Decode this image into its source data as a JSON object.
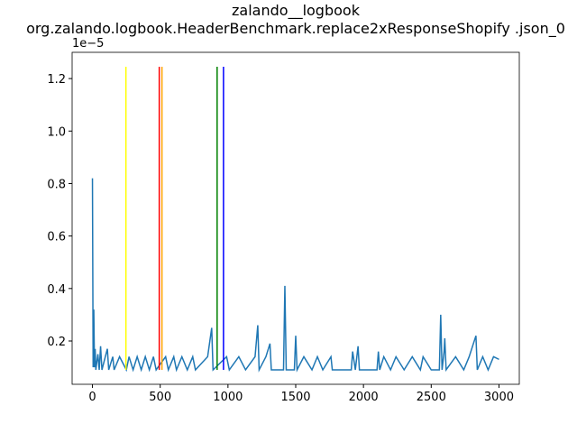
{
  "chart_data": {
    "type": "line",
    "title": [
      "zalando__logbook",
      "org.zalando.logbook.HeaderBenchmark.replace2xResponseShopify .json_0"
    ],
    "y_offset_label": "1e−5",
    "xlim": [
      -150,
      3150
    ],
    "xticks": [
      0,
      500,
      1000,
      1500,
      2000,
      2500,
      3000
    ],
    "ylim": [
      0.035,
      1.3
    ],
    "yticks": [
      0.2,
      0.4,
      0.6,
      0.8,
      {
        "value": 1,
        "label": "1.0"
      },
      1.2
    ],
    "series": [
      {
        "color": "#1f77b4",
        "x": [
          0,
          5,
          10,
          15,
          20,
          25,
          40,
          50,
          60,
          70,
          110,
          120,
          150,
          160,
          200,
          250,
          270,
          300,
          330,
          360,
          390,
          420,
          450,
          470,
          540,
          560,
          600,
          620,
          660,
          700,
          740,
          760,
          850,
          880,
          890,
          990,
          1010,
          1080,
          1130,
          1200,
          1220,
          1230,
          1280,
          1310,
          1320,
          1410,
          1420,
          1430,
          1490,
          1500,
          1510,
          1560,
          1620,
          1660,
          1700,
          1760,
          1770,
          1910,
          1920,
          1940,
          1960,
          1970,
          2100,
          2110,
          2120,
          2150,
          2200,
          2240,
          2300,
          2360,
          2420,
          2440,
          2500,
          2560,
          2570,
          2580,
          2595,
          2600,
          2610,
          2680,
          2740,
          2780,
          2830,
          2840,
          2880,
          2920,
          2960,
          3000
        ],
        "values": [
          0.82,
          0.1,
          0.32,
          0.1,
          0.17,
          0.09,
          0.15,
          0.09,
          0.18,
          0.09,
          0.17,
          0.09,
          0.14,
          0.09,
          0.14,
          0.09,
          0.14,
          0.09,
          0.14,
          0.09,
          0.14,
          0.09,
          0.14,
          0.09,
          0.14,
          0.09,
          0.14,
          0.09,
          0.14,
          0.09,
          0.14,
          0.09,
          0.14,
          0.25,
          0.09,
          0.14,
          0.09,
          0.14,
          0.09,
          0.14,
          0.26,
          0.09,
          0.14,
          0.19,
          0.09,
          0.09,
          0.41,
          0.09,
          0.09,
          0.22,
          0.09,
          0.14,
          0.09,
          0.14,
          0.09,
          0.14,
          0.09,
          0.09,
          0.16,
          0.09,
          0.18,
          0.09,
          0.09,
          0.16,
          0.09,
          0.14,
          0.09,
          0.14,
          0.09,
          0.14,
          0.09,
          0.14,
          0.09,
          0.09,
          0.3,
          0.09,
          0.16,
          0.21,
          0.09,
          0.14,
          0.09,
          0.14,
          0.22,
          0.09,
          0.14,
          0.09,
          0.14,
          0.13
        ]
      }
    ],
    "vlines": {
      "x": [
        247,
        493,
        513,
        920,
        967
      ],
      "colors": [
        "#ffff00",
        "#ff0000",
        "#ffa500",
        "#008000",
        "#0000ff"
      ],
      "ymin": 0.09,
      "ymax": 1.245
    }
  }
}
